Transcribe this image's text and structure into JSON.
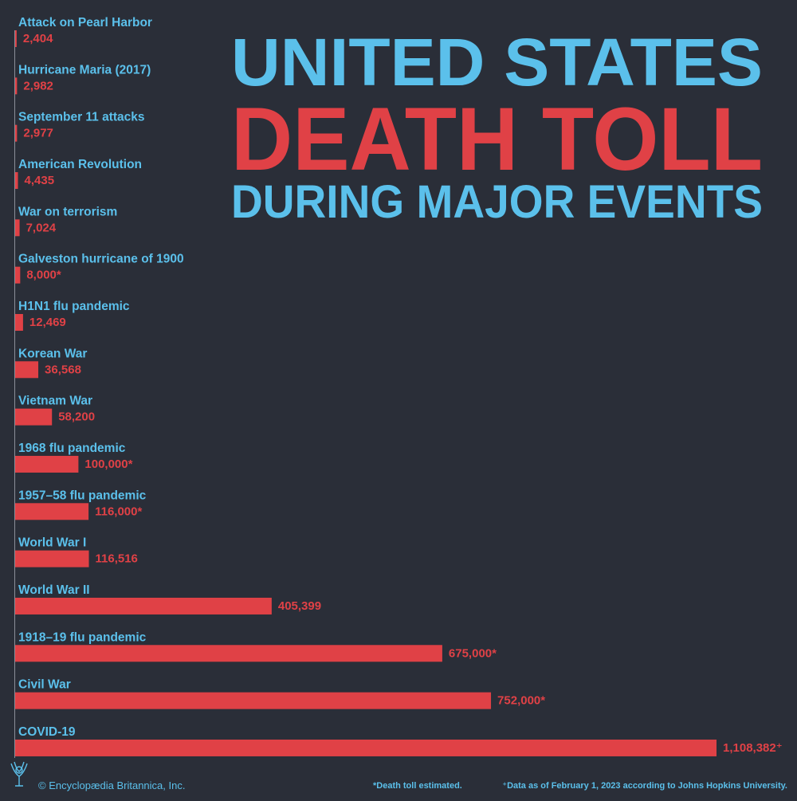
{
  "chart_data": {
    "type": "bar",
    "orientation": "horizontal",
    "title": [
      "UNITED STATES",
      "DEATH TOLL",
      "DURING MAJOR EVENTS"
    ],
    "title_colors": [
      "#5bc0eb",
      "#e04146",
      "#5bc0eb"
    ],
    "categories": [
      "Attack on Pearl Harbor",
      "Hurricane Maria (2017)",
      "September 11 attacks",
      "American Revolution",
      "War on terrorism",
      "Galveston hurricane of 1900",
      "H1N1 flu pandemic",
      "Korean War",
      "Vietnam War",
      "1968 flu pandemic",
      "1957–58 flu pandemic",
      "World War I",
      "World War II",
      "1918–19 flu pandemic",
      "Civil War",
      "COVID-19"
    ],
    "values": [
      2404,
      2982,
      2977,
      4435,
      7024,
      8000,
      12469,
      36568,
      58200,
      100000,
      116000,
      116516,
      405399,
      675000,
      752000,
      1108382
    ],
    "value_labels": [
      "2,404",
      "2,982",
      "2,977",
      "4,435",
      "7,024",
      "8,000*",
      "12,469",
      "36,568",
      "58,200",
      "100,000*",
      "116,000*",
      "116,516",
      "405,399",
      "675,000*",
      "752,000*",
      "1,108,382⁺"
    ],
    "color": "#e04146",
    "notes": [
      "*Death toll estimated.",
      "⁺Data as of February 1, 2023 according to Johns Hopkins University."
    ],
    "credit": "© Encyclopædia Britannica, Inc."
  }
}
